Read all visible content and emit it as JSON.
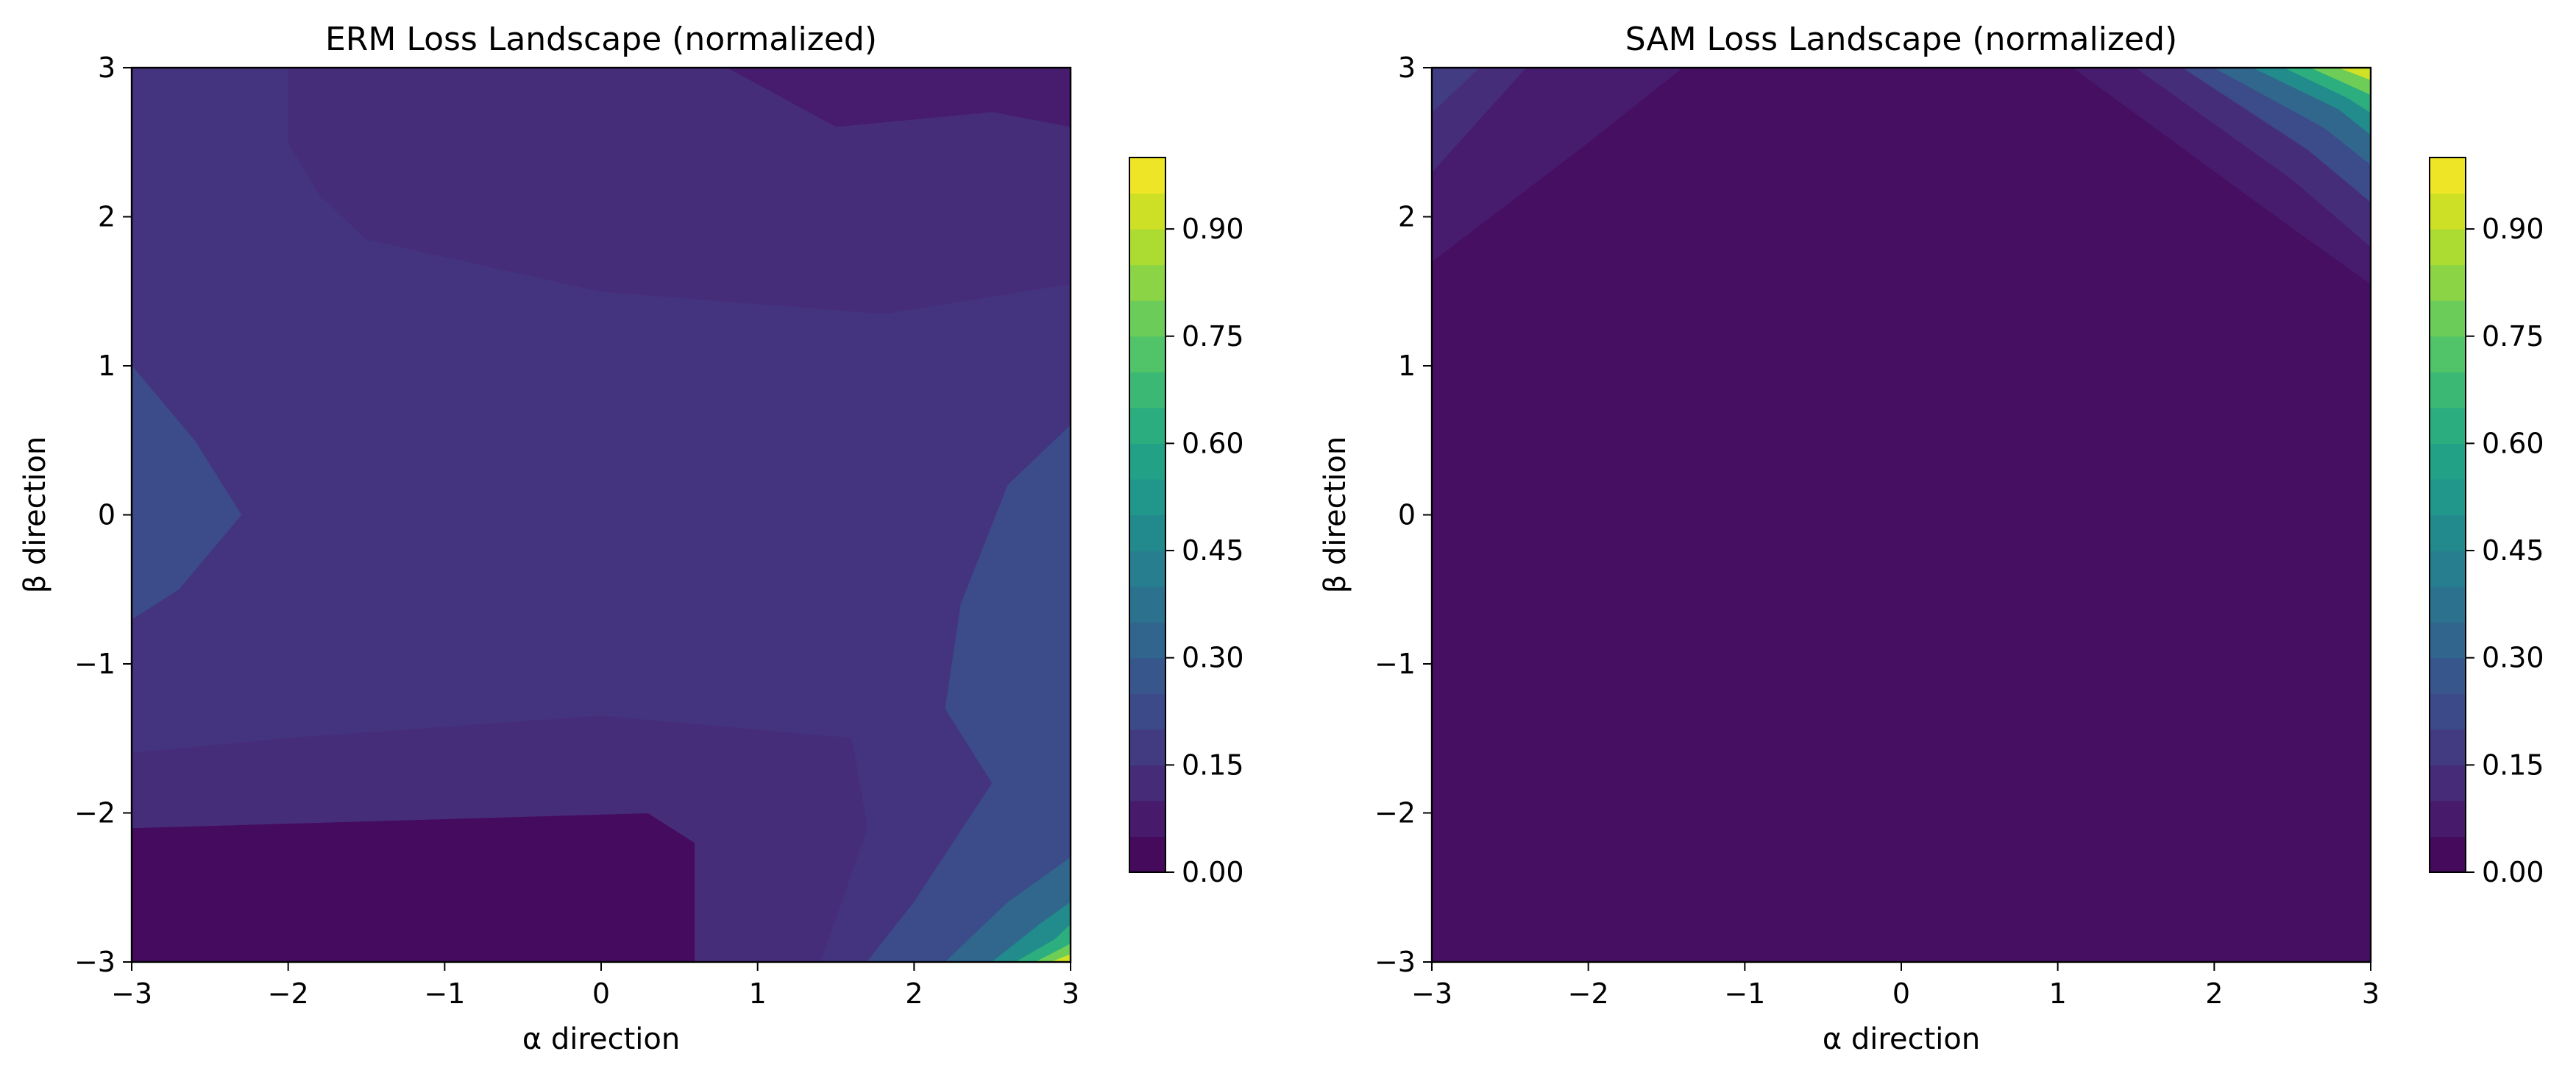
{
  "chart_data": [
    {
      "type": "contour",
      "title": "ERM Loss Landscape (normalized)",
      "xlabel": "α direction",
      "ylabel": "β direction",
      "xlim": [
        -3,
        3
      ],
      "ylim": [
        -3,
        3
      ],
      "x_ticks": [
        "−3",
        "−2",
        "−1",
        "0",
        "1",
        "2",
        "3"
      ],
      "y_ticks": [
        "−3",
        "−2",
        "−1",
        "0",
        "1",
        "2",
        "3"
      ],
      "grid": false,
      "colormap": "viridis",
      "colorbar": {
        "range": [
          0,
          1
        ],
        "levels": 20,
        "ticks": [
          "0.00",
          "0.15",
          "0.30",
          "0.45",
          "0.60",
          "0.75",
          "0.90"
        ]
      },
      "description": "mostly 0.05–0.15; low valleys near β≈2.5 (top) and β≈-2.5 (bottom-left); rises to ~1.0 at bottom-right corner (α=3, β=-3)",
      "regions": [
        {
          "level": 0.0,
          "points": [
            [
              -3,
              -3
            ],
            [
              0.6,
              -3
            ],
            [
              0.6,
              -2.2
            ],
            [
              0.3,
              -2.0
            ],
            [
              -3,
              -2.1
            ]
          ]
        },
        {
          "level": 0.05,
          "points": [
            [
              0.8,
              3
            ],
            [
              3,
              3
            ],
            [
              3,
              2.6
            ],
            [
              2.5,
              2.7
            ],
            [
              1.5,
              2.6
            ]
          ]
        },
        {
          "level": 0.1,
          "points": [
            [
              -2,
              3
            ],
            [
              0.8,
              3
            ],
            [
              1.5,
              2.6
            ],
            [
              2.5,
              2.7
            ],
            [
              3,
              2.6
            ],
            [
              3,
              1.55
            ],
            [
              1.8,
              1.35
            ],
            [
              0,
              1.5
            ],
            [
              -1.5,
              1.85
            ],
            [
              -1.8,
              2.15
            ],
            [
              -2,
              2.5
            ]
          ]
        },
        {
          "level": 0.1,
          "points": [
            [
              -3,
              -2.1
            ],
            [
              0.3,
              -2.0
            ],
            [
              0.6,
              -2.2
            ],
            [
              0.6,
              -3
            ],
            [
              1.4,
              -3
            ],
            [
              1.7,
              -2.1
            ],
            [
              1.6,
              -1.5
            ],
            [
              0,
              -1.35
            ],
            [
              -2,
              -1.5
            ],
            [
              -3,
              -1.6
            ]
          ]
        },
        {
          "level": 0.2,
          "points": [
            [
              -3,
              1.0
            ],
            [
              -2.6,
              0.5
            ],
            [
              -2.3,
              0.0
            ],
            [
              -2.7,
              -0.5
            ],
            [
              -3,
              -0.7
            ]
          ]
        },
        {
          "level": 0.2,
          "points": [
            [
              3,
              0.6
            ],
            [
              2.6,
              0.2
            ],
            [
              2.3,
              -0.6
            ],
            [
              2.2,
              -1.3
            ],
            [
              2.5,
              -1.8
            ],
            [
              2.0,
              -2.6
            ],
            [
              1.7,
              -3
            ],
            [
              3,
              -3
            ]
          ]
        },
        {
          "level": 0.3,
          "points": [
            [
              2.2,
              -3
            ],
            [
              2.6,
              -2.6
            ],
            [
              3,
              -2.3
            ],
            [
              3,
              -3
            ]
          ]
        },
        {
          "level": 0.45,
          "points": [
            [
              2.5,
              -3
            ],
            [
              2.8,
              -2.75
            ],
            [
              3,
              -2.6
            ],
            [
              3,
              -3
            ]
          ]
        },
        {
          "level": 0.6,
          "points": [
            [
              2.65,
              -3
            ],
            [
              2.9,
              -2.85
            ],
            [
              3,
              -2.75
            ],
            [
              3,
              -3
            ]
          ]
        },
        {
          "level": 0.75,
          "points": [
            [
              2.78,
              -3
            ],
            [
              3,
              -2.88
            ],
            [
              3,
              -3
            ]
          ]
        },
        {
          "level": 0.9,
          "points": [
            [
              2.88,
              -3
            ],
            [
              3,
              -2.95
            ],
            [
              3,
              -3
            ]
          ]
        }
      ]
    },
    {
      "type": "contour",
      "title": "SAM Loss Landscape (normalized)",
      "xlabel": "α direction",
      "ylabel": "β direction",
      "xlim": [
        -3,
        3
      ],
      "ylim": [
        -3,
        3
      ],
      "x_ticks": [
        "−3",
        "−2",
        "−1",
        "0",
        "1",
        "2",
        "3"
      ],
      "y_ticks": [
        "−3",
        "−2",
        "−1",
        "0",
        "1",
        "2",
        "3"
      ],
      "grid": false,
      "colormap": "viridis",
      "colorbar": {
        "range": [
          0,
          1
        ],
        "levels": 20,
        "ticks": [
          "0.00",
          "0.15",
          "0.30",
          "0.45",
          "0.60",
          "0.75",
          "0.90"
        ]
      },
      "description": "near 0 almost everywhere; small rise at top-left corner; rises to ~1.0 at top-right corner (α=3, β=3)",
      "regions": [
        {
          "level": 0.05,
          "points": [
            [
              -3,
              1.7
            ],
            [
              -2.0,
              2.5
            ],
            [
              -1.4,
              3
            ],
            [
              -3,
              3
            ]
          ]
        },
        {
          "level": 0.1,
          "points": [
            [
              -3,
              2.3
            ],
            [
              -2.4,
              3
            ],
            [
              -3,
              3
            ]
          ]
        },
        {
          "level": 0.15,
          "points": [
            [
              -3,
              2.7
            ],
            [
              -2.7,
              3
            ],
            [
              -3,
              3
            ]
          ]
        },
        {
          "level": 0.05,
          "points": [
            [
              1.1,
              3
            ],
            [
              2.4,
              2.0
            ],
            [
              3,
              1.55
            ],
            [
              3,
              3
            ]
          ]
        },
        {
          "level": 0.1,
          "points": [
            [
              1.5,
              3
            ],
            [
              2.5,
              2.25
            ],
            [
              3,
              1.8
            ],
            [
              3,
              3
            ]
          ]
        },
        {
          "level": 0.2,
          "points": [
            [
              1.8,
              3
            ],
            [
              2.6,
              2.45
            ],
            [
              3,
              2.1
            ],
            [
              3,
              3
            ]
          ]
        },
        {
          "level": 0.3,
          "points": [
            [
              2.0,
              3
            ],
            [
              2.7,
              2.6
            ],
            [
              3,
              2.35
            ],
            [
              3,
              3
            ]
          ]
        },
        {
          "level": 0.45,
          "points": [
            [
              2.25,
              3
            ],
            [
              2.8,
              2.72
            ],
            [
              3,
              2.55
            ],
            [
              3,
              3
            ]
          ]
        },
        {
          "level": 0.6,
          "points": [
            [
              2.45,
              3
            ],
            [
              2.85,
              2.8
            ],
            [
              3,
              2.7
            ],
            [
              3,
              3
            ]
          ]
        },
        {
          "level": 0.75,
          "points": [
            [
              2.62,
              3
            ],
            [
              3,
              2.82
            ],
            [
              3,
              3
            ]
          ]
        },
        {
          "level": 0.9,
          "points": [
            [
              2.8,
              3
            ],
            [
              3,
              2.92
            ],
            [
              3,
              3
            ]
          ]
        }
      ]
    }
  ]
}
